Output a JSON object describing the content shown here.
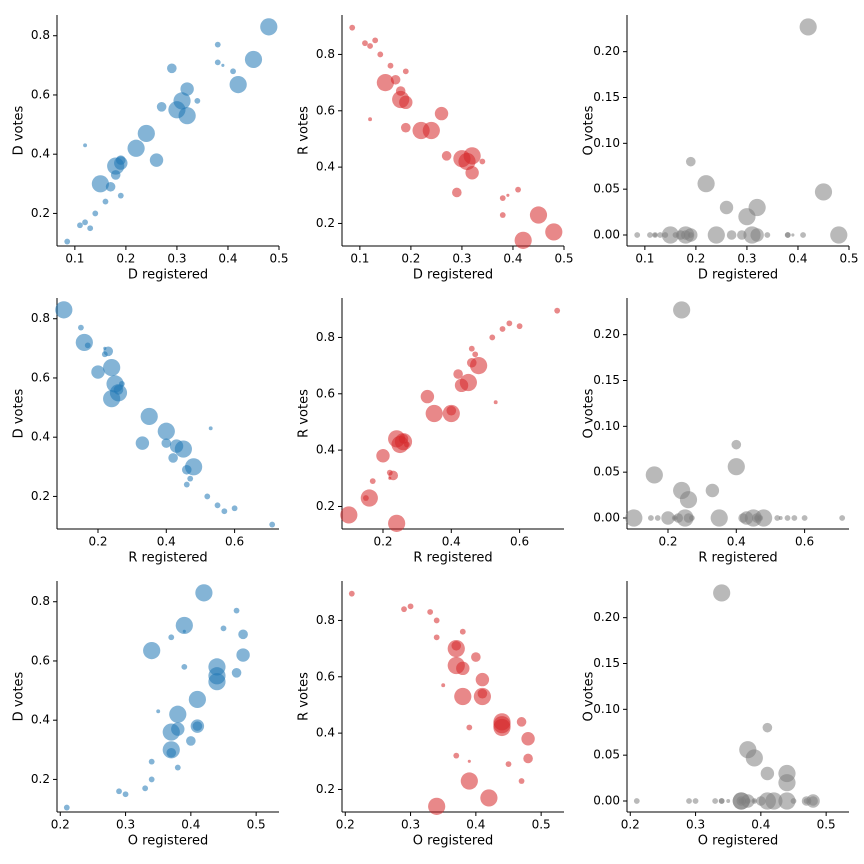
{
  "chart_data": [
    {
      "type": "scatter",
      "xlabel": "D registered",
      "ylabel": "D votes",
      "color": "#1f77b4",
      "x": [
        0.48,
        0.45,
        0.42,
        0.38,
        0.38,
        0.41,
        0.32,
        0.31,
        0.32,
        0.3,
        0.34,
        0.29,
        0.27,
        0.26,
        0.24,
        0.22,
        0.19,
        0.19,
        0.18,
        0.18,
        0.17,
        0.15,
        0.16,
        0.19,
        0.12,
        0.13,
        0.11,
        0.085,
        0.14,
        0.12,
        0.39
      ],
      "y": [
        0.83,
        0.72,
        0.635,
        0.77,
        0.71,
        0.68,
        0.62,
        0.58,
        0.53,
        0.55,
        0.58,
        0.69,
        0.56,
        0.38,
        0.47,
        0.42,
        0.38,
        0.37,
        0.36,
        0.33,
        0.29,
        0.3,
        0.24,
        0.26,
        0.17,
        0.15,
        0.16,
        0.105,
        0.2,
        0.43,
        0.7
      ],
      "sizes": [
        4,
        4,
        4,
        1,
        1,
        1,
        3,
        4,
        4,
        4,
        1,
        2,
        2,
        3,
        4,
        4,
        2,
        3,
        4,
        2,
        2,
        4,
        1,
        1,
        1,
        1,
        1,
        1,
        1,
        0.5,
        0.3
      ],
      "xlim": [
        0.065,
        0.5
      ],
      "xticks": [
        0.1,
        0.2,
        0.3,
        0.4,
        0.5
      ],
      "ylim": [
        0.09,
        0.87
      ],
      "yticks": [
        0.2,
        0.4,
        0.6,
        0.8
      ]
    },
    {
      "type": "scatter",
      "xlabel": "D registered",
      "ylabel": "R votes",
      "color": "#d62728",
      "x": [
        0.48,
        0.45,
        0.42,
        0.38,
        0.38,
        0.41,
        0.32,
        0.31,
        0.32,
        0.3,
        0.34,
        0.29,
        0.27,
        0.26,
        0.24,
        0.22,
        0.19,
        0.19,
        0.18,
        0.18,
        0.17,
        0.15,
        0.16,
        0.19,
        0.12,
        0.13,
        0.11,
        0.085,
        0.14,
        0.12,
        0.39
      ],
      "y": [
        0.17,
        0.23,
        0.14,
        0.23,
        0.29,
        0.32,
        0.38,
        0.42,
        0.44,
        0.43,
        0.42,
        0.31,
        0.44,
        0.59,
        0.53,
        0.53,
        0.54,
        0.63,
        0.64,
        0.67,
        0.71,
        0.7,
        0.76,
        0.74,
        0.83,
        0.85,
        0.84,
        0.895,
        0.8,
        0.57,
        0.3
      ],
      "sizes": [
        4,
        4,
        4,
        1,
        1,
        1,
        3,
        4,
        4,
        4,
        1,
        2,
        2,
        3,
        4,
        4,
        2,
        3,
        4,
        2,
        2,
        4,
        1,
        1,
        1,
        1,
        1,
        1,
        1,
        0.5,
        0.3
      ],
      "xlim": [
        0.065,
        0.5
      ],
      "xticks": [
        0.1,
        0.2,
        0.3,
        0.4,
        0.5
      ],
      "ylim": [
        0.12,
        0.94
      ],
      "yticks": [
        0.2,
        0.4,
        0.6,
        0.8
      ]
    },
    {
      "type": "scatter",
      "xlabel": "D registered",
      "ylabel": "O votes",
      "color": "#7f7f7f",
      "x": [
        0.48,
        0.45,
        0.42,
        0.38,
        0.38,
        0.41,
        0.32,
        0.31,
        0.32,
        0.3,
        0.34,
        0.29,
        0.27,
        0.26,
        0.24,
        0.22,
        0.19,
        0.19,
        0.18,
        0.18,
        0.17,
        0.15,
        0.16,
        0.19,
        0.12,
        0.13,
        0.11,
        0.085,
        0.14,
        0.12,
        0.39
      ],
      "y": [
        0,
        0.047,
        0.227,
        0,
        0,
        0,
        0,
        0,
        0.03,
        0.02,
        0,
        0,
        0,
        0.03,
        0,
        0.056,
        0.08,
        0,
        0,
        0,
        0,
        0,
        0,
        0,
        0,
        0,
        0,
        0,
        0,
        0,
        0
      ],
      "sizes": [
        4,
        4,
        4,
        1,
        1,
        1,
        3,
        4,
        4,
        4,
        1,
        2,
        2,
        3,
        4,
        4,
        2,
        3,
        4,
        2,
        2,
        4,
        1,
        1,
        1,
        1,
        1,
        1,
        1,
        0.5,
        0.3
      ],
      "xlim": [
        0.065,
        0.5
      ],
      "xticks": [
        0.1,
        0.2,
        0.3,
        0.4,
        0.5
      ],
      "ylim": [
        -0.012,
        0.24
      ],
      "yticks": [
        {
          "value": 0,
          "label": "0.00"
        },
        0.05,
        {
          "value": 0.1,
          "label": "0.10"
        },
        0.15,
        {
          "value": 0.2,
          "label": "0.20"
        }
      ]
    },
    {
      "type": "scatter",
      "xlabel": "R registered",
      "ylabel": "D votes",
      "color": "#1f77b4",
      "x": [
        0.1,
        0.16,
        0.24,
        0.15,
        0.17,
        0.22,
        0.2,
        0.25,
        0.24,
        0.26,
        0.27,
        0.23,
        0.26,
        0.33,
        0.35,
        0.4,
        0.4,
        0.43,
        0.45,
        0.42,
        0.46,
        0.48,
        0.46,
        0.47,
        0.55,
        0.57,
        0.6,
        0.71,
        0.52,
        0.53,
        0.22
      ],
      "y": [
        0.83,
        0.72,
        0.635,
        0.77,
        0.71,
        0.68,
        0.62,
        0.58,
        0.53,
        0.55,
        0.58,
        0.69,
        0.56,
        0.38,
        0.47,
        0.42,
        0.38,
        0.37,
        0.36,
        0.33,
        0.29,
        0.3,
        0.24,
        0.26,
        0.17,
        0.15,
        0.16,
        0.105,
        0.2,
        0.43,
        0.7
      ],
      "sizes": [
        4,
        4,
        4,
        1,
        1,
        1,
        3,
        4,
        4,
        4,
        1,
        2,
        2,
        3,
        4,
        4,
        2,
        3,
        4,
        2,
        2,
        4,
        1,
        1,
        1,
        1,
        1,
        1,
        1,
        0.5,
        0.3
      ],
      "xlim": [
        0.08,
        0.73
      ],
      "xticks": [
        0.2,
        0.4,
        0.6
      ],
      "ylim": [
        0.09,
        0.87
      ],
      "yticks": [
        0.2,
        0.4,
        0.6,
        0.8
      ]
    },
    {
      "type": "scatter",
      "xlabel": "R registered",
      "ylabel": "R votes",
      "color": "#d62728",
      "x": [
        0.1,
        0.16,
        0.24,
        0.15,
        0.17,
        0.22,
        0.2,
        0.25,
        0.24,
        0.26,
        0.27,
        0.23,
        0.26,
        0.33,
        0.35,
        0.4,
        0.4,
        0.43,
        0.45,
        0.42,
        0.46,
        0.48,
        0.46,
        0.47,
        0.55,
        0.57,
        0.6,
        0.71,
        0.52,
        0.53,
        0.22
      ],
      "y": [
        0.17,
        0.23,
        0.14,
        0.23,
        0.29,
        0.32,
        0.38,
        0.42,
        0.44,
        0.43,
        0.42,
        0.31,
        0.44,
        0.59,
        0.53,
        0.53,
        0.54,
        0.63,
        0.64,
        0.67,
        0.71,
        0.7,
        0.76,
        0.74,
        0.83,
        0.85,
        0.84,
        0.895,
        0.8,
        0.57,
        0.3
      ],
      "sizes": [
        4,
        4,
        4,
        1,
        1,
        1,
        3,
        4,
        4,
        4,
        1,
        2,
        2,
        3,
        4,
        4,
        2,
        3,
        4,
        2,
        2,
        4,
        1,
        1,
        1,
        1,
        1,
        1,
        1,
        0.5,
        0.3
      ],
      "xlim": [
        0.08,
        0.73
      ],
      "xticks": [
        0.2,
        0.4,
        0.6
      ],
      "ylim": [
        0.12,
        0.94
      ],
      "yticks": [
        0.2,
        0.4,
        0.6,
        0.8
      ]
    },
    {
      "type": "scatter",
      "xlabel": "R registered",
      "ylabel": "O votes",
      "color": "#7f7f7f",
      "x": [
        0.1,
        0.16,
        0.24,
        0.15,
        0.17,
        0.22,
        0.2,
        0.25,
        0.24,
        0.26,
        0.27,
        0.23,
        0.26,
        0.33,
        0.35,
        0.4,
        0.4,
        0.43,
        0.45,
        0.42,
        0.46,
        0.48,
        0.46,
        0.47,
        0.55,
        0.57,
        0.6,
        0.71,
        0.52,
        0.53,
        0.22
      ],
      "y": [
        0,
        0.047,
        0.227,
        0,
        0,
        0,
        0,
        0,
        0.03,
        0.02,
        0,
        0,
        0,
        0.03,
        0,
        0.056,
        0.08,
        0,
        0,
        0,
        0,
        0,
        0,
        0,
        0,
        0,
        0,
        0,
        0,
        0,
        0
      ],
      "sizes": [
        4,
        4,
        4,
        1,
        1,
        1,
        3,
        4,
        4,
        4,
        1,
        2,
        2,
        3,
        4,
        4,
        2,
        3,
        4,
        2,
        2,
        4,
        1,
        1,
        1,
        1,
        1,
        1,
        1,
        0.5,
        0.3
      ],
      "xlim": [
        0.08,
        0.73
      ],
      "xticks": [
        0.2,
        0.4,
        0.6
      ],
      "ylim": [
        -0.012,
        0.24
      ],
      "yticks": [
        {
          "value": 0,
          "label": "0.00"
        },
        0.05,
        {
          "value": 0.1,
          "label": "0.10"
        },
        0.15,
        {
          "value": 0.2,
          "label": "0.20"
        }
      ]
    },
    {
      "type": "scatter",
      "xlabel": "O registered",
      "ylabel": "D votes",
      "color": "#1f77b4",
      "x": [
        0.42,
        0.39,
        0.34,
        0.47,
        0.45,
        0.37,
        0.48,
        0.44,
        0.44,
        0.44,
        0.39,
        0.48,
        0.47,
        0.41,
        0.41,
        0.38,
        0.41,
        0.38,
        0.37,
        0.4,
        0.37,
        0.37,
        0.38,
        0.34,
        0.33,
        0.3,
        0.29,
        0.21,
        0.34,
        0.35,
        0.39
      ],
      "y": [
        0.83,
        0.72,
        0.635,
        0.77,
        0.71,
        0.68,
        0.62,
        0.58,
        0.53,
        0.55,
        0.58,
        0.69,
        0.56,
        0.38,
        0.47,
        0.42,
        0.38,
        0.37,
        0.36,
        0.33,
        0.29,
        0.3,
        0.24,
        0.26,
        0.17,
        0.15,
        0.16,
        0.105,
        0.2,
        0.43,
        0.7
      ],
      "sizes": [
        4,
        4,
        4,
        1,
        1,
        1,
        3,
        4,
        4,
        4,
        1,
        2,
        2,
        3,
        4,
        4,
        2,
        3,
        4,
        2,
        2,
        4,
        1,
        1,
        1,
        1,
        1,
        1,
        1,
        0.5,
        0.3
      ],
      "xlim": [
        0.195,
        0.535
      ],
      "xticks": [
        0.2,
        0.3,
        0.4,
        0.5
      ],
      "ylim": [
        0.09,
        0.87
      ],
      "yticks": [
        0.2,
        0.4,
        0.6,
        0.8
      ]
    },
    {
      "type": "scatter",
      "xlabel": "O registered",
      "ylabel": "R votes",
      "color": "#d62728",
      "x": [
        0.42,
        0.39,
        0.34,
        0.47,
        0.45,
        0.37,
        0.48,
        0.44,
        0.44,
        0.44,
        0.39,
        0.48,
        0.47,
        0.41,
        0.41,
        0.38,
        0.41,
        0.38,
        0.37,
        0.4,
        0.37,
        0.37,
        0.38,
        0.34,
        0.33,
        0.3,
        0.29,
        0.21,
        0.34,
        0.35,
        0.39
      ],
      "y": [
        0.17,
        0.23,
        0.14,
        0.23,
        0.29,
        0.32,
        0.38,
        0.42,
        0.44,
        0.43,
        0.42,
        0.31,
        0.44,
        0.59,
        0.53,
        0.53,
        0.54,
        0.63,
        0.64,
        0.67,
        0.71,
        0.7,
        0.76,
        0.74,
        0.83,
        0.85,
        0.84,
        0.895,
        0.8,
        0.57,
        0.3
      ],
      "sizes": [
        4,
        4,
        4,
        1,
        1,
        1,
        3,
        4,
        4,
        4,
        1,
        2,
        2,
        3,
        4,
        4,
        2,
        3,
        4,
        2,
        2,
        4,
        1,
        1,
        1,
        1,
        1,
        1,
        1,
        0.5,
        0.3
      ],
      "xlim": [
        0.195,
        0.535
      ],
      "xticks": [
        0.2,
        0.3,
        0.4,
        0.5
      ],
      "ylim": [
        0.12,
        0.94
      ],
      "yticks": [
        0.2,
        0.4,
        0.6,
        0.8
      ]
    },
    {
      "type": "scatter",
      "xlabel": "O registered",
      "ylabel": "O votes",
      "color": "#7f7f7f",
      "x": [
        0.42,
        0.39,
        0.34,
        0.47,
        0.45,
        0.37,
        0.48,
        0.44,
        0.44,
        0.44,
        0.39,
        0.48,
        0.47,
        0.41,
        0.41,
        0.38,
        0.41,
        0.38,
        0.37,
        0.4,
        0.37,
        0.37,
        0.38,
        0.34,
        0.33,
        0.3,
        0.29,
        0.21,
        0.34,
        0.35,
        0.39
      ],
      "y": [
        0,
        0.047,
        0.227,
        0,
        0,
        0,
        0,
        0,
        0.03,
        0.02,
        0,
        0,
        0,
        0.03,
        0,
        0.056,
        0.08,
        0,
        0,
        0,
        0,
        0,
        0,
        0,
        0,
        0,
        0,
        0,
        0,
        0,
        0
      ],
      "sizes": [
        4,
        4,
        4,
        1,
        1,
        1,
        3,
        4,
        4,
        4,
        1,
        2,
        2,
        3,
        4,
        4,
        2,
        3,
        4,
        2,
        2,
        4,
        1,
        1,
        1,
        1,
        1,
        1,
        1,
        0.5,
        0.3
      ],
      "xlim": [
        0.195,
        0.535
      ],
      "xticks": [
        0.2,
        0.3,
        0.4,
        0.5
      ],
      "ylim": [
        -0.012,
        0.24
      ],
      "yticks": [
        {
          "value": 0,
          "label": "0.00"
        },
        0.05,
        {
          "value": 0.1,
          "label": "0.10"
        },
        0.15,
        {
          "value": 0.2,
          "label": "0.20"
        }
      ]
    }
  ]
}
